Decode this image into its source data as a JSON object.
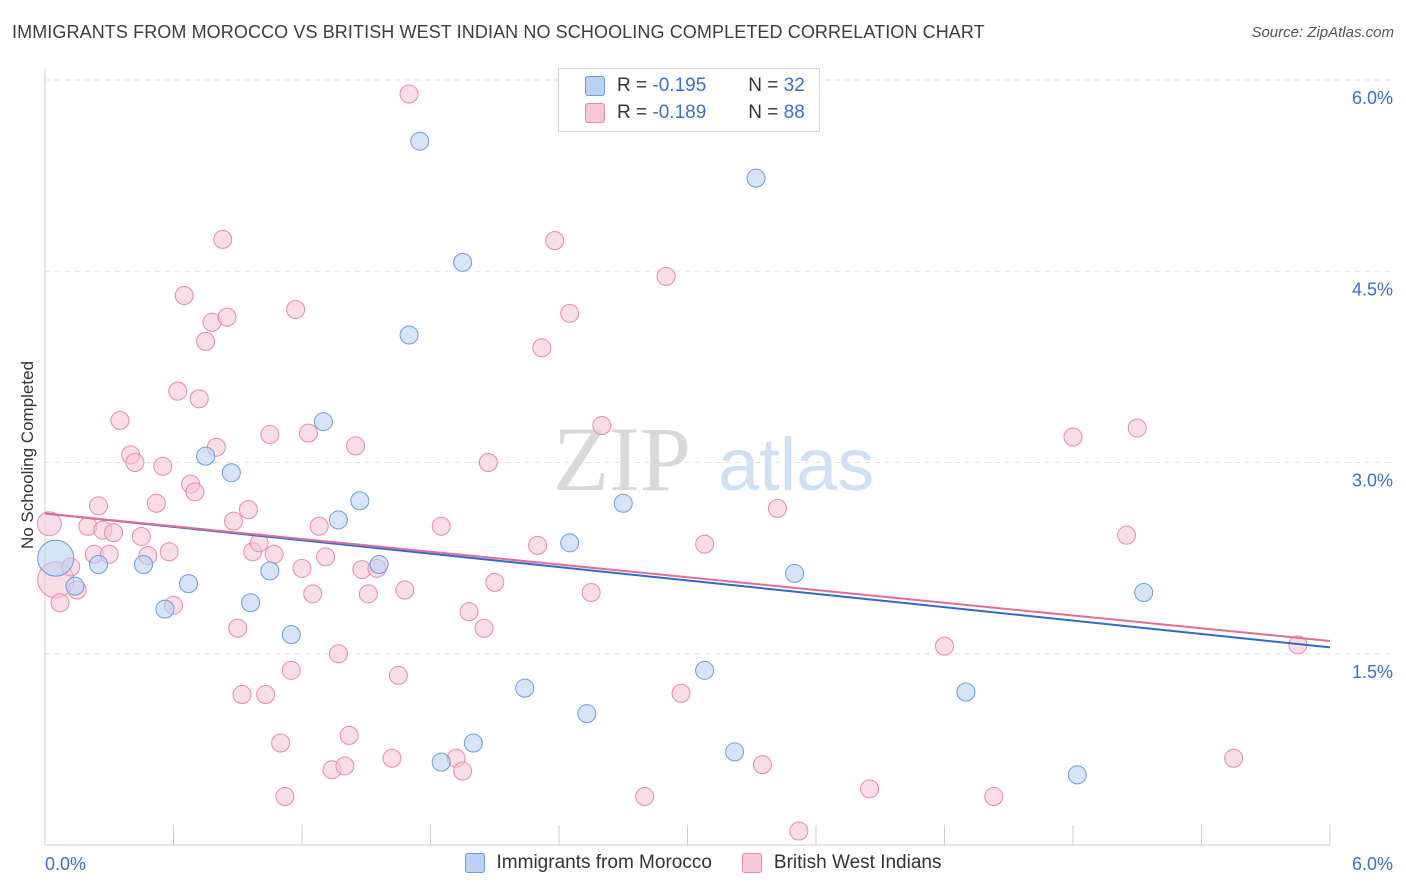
{
  "header": {
    "title": "IMMIGRANTS FROM MOROCCO VS BRITISH WEST INDIAN NO SCHOOLING COMPLETED CORRELATION CHART",
    "source": "Source: ZipAtlas.com"
  },
  "watermark": {
    "zip": "ZIP",
    "atlas": "atlas"
  },
  "legend": {
    "r_label": "R =",
    "n_label": "N =",
    "rows": [
      {
        "r": "-0.195",
        "n": "32"
      },
      {
        "r": "-0.189",
        "n": "88"
      }
    ]
  },
  "colors": {
    "blue_fill": "#b9d2f5",
    "blue_stroke": "#6d9be0",
    "blue_line": "#2f6acc",
    "pink_fill": "#f9c6d5",
    "pink_stroke": "#e88aa7",
    "pink_line": "#e06e96",
    "axis_label": "#3b6fd1"
  },
  "chart_data": {
    "type": "scatter",
    "title": "IMMIGRANTS FROM MOROCCO VS BRITISH WEST INDIAN NO SCHOOLING COMPLETED CORRELATION CHART",
    "xlabel": "",
    "ylabel": "No Schooling Completed",
    "xlim": [
      0,
      6.0
    ],
    "ylim": [
      0,
      6.0
    ],
    "x_tick_labels": [
      "0.0%",
      "6.0%"
    ],
    "y_ticks": [
      1.5,
      3.0,
      4.5,
      6.0
    ],
    "y_tick_labels": [
      "1.5%",
      "3.0%",
      "4.5%",
      "6.0%"
    ],
    "grid": true,
    "legend_position": "top-center",
    "series": [
      {
        "name": "Immigrants from Morocco",
        "color": "blue",
        "trend": [
          [
            0,
            2.6
          ],
          [
            6.0,
            1.55
          ]
        ],
        "points": [
          [
            0.05,
            2.25,
            18
          ],
          [
            0.14,
            2.03,
            9
          ],
          [
            0.25,
            2.2,
            9
          ],
          [
            0.46,
            2.2,
            9
          ],
          [
            0.56,
            1.85,
            9
          ],
          [
            0.67,
            2.05,
            9
          ],
          [
            0.75,
            3.05,
            9
          ],
          [
            0.87,
            2.92,
            9
          ],
          [
            0.96,
            1.9,
            9
          ],
          [
            1.05,
            2.15,
            9
          ],
          [
            1.15,
            1.65,
            9
          ],
          [
            1.3,
            3.32,
            9
          ],
          [
            1.37,
            2.55,
            9
          ],
          [
            1.47,
            2.7,
            9
          ],
          [
            1.56,
            2.2,
            9
          ],
          [
            1.7,
            4.0,
            9
          ],
          [
            1.75,
            5.52,
            9
          ],
          [
            1.85,
            0.65,
            9
          ],
          [
            1.95,
            4.57,
            9
          ],
          [
            2.0,
            0.8,
            9
          ],
          [
            2.24,
            1.23,
            9
          ],
          [
            2.45,
            2.37,
            9
          ],
          [
            2.53,
            1.03,
            9
          ],
          [
            2.7,
            2.68,
            9
          ],
          [
            3.08,
            1.37,
            9
          ],
          [
            3.22,
            0.73,
            9
          ],
          [
            3.32,
            5.23,
            9
          ],
          [
            3.5,
            2.13,
            9
          ],
          [
            4.3,
            1.2,
            9
          ],
          [
            4.82,
            0.55,
            9
          ],
          [
            5.13,
            1.98,
            9
          ]
        ]
      },
      {
        "name": "British West Indians",
        "color": "pink",
        "trend": [
          [
            0,
            2.6
          ],
          [
            6.0,
            1.6
          ]
        ],
        "points": [
          [
            0.05,
            2.08,
            18
          ],
          [
            0.02,
            2.52,
            12
          ],
          [
            0.07,
            1.9,
            9
          ],
          [
            0.12,
            2.18,
            9
          ],
          [
            0.15,
            2.0,
            9
          ],
          [
            0.2,
            2.5,
            9
          ],
          [
            0.23,
            2.28,
            9
          ],
          [
            0.25,
            2.66,
            9
          ],
          [
            0.27,
            2.47,
            9
          ],
          [
            0.3,
            2.28,
            9
          ],
          [
            0.32,
            2.45,
            9
          ],
          [
            0.35,
            3.33,
            9
          ],
          [
            0.4,
            3.06,
            9
          ],
          [
            0.42,
            3.0,
            9
          ],
          [
            0.45,
            2.42,
            9
          ],
          [
            0.48,
            2.27,
            9
          ],
          [
            0.52,
            2.68,
            9
          ],
          [
            0.55,
            2.97,
            9
          ],
          [
            0.58,
            2.3,
            9
          ],
          [
            0.62,
            3.56,
            9
          ],
          [
            0.65,
            4.31,
            9
          ],
          [
            0.68,
            2.83,
            9
          ],
          [
            0.7,
            2.77,
            9
          ],
          [
            0.72,
            3.5,
            9
          ],
          [
            0.75,
            3.95,
            9
          ],
          [
            0.78,
            4.1,
            9
          ],
          [
            0.8,
            3.12,
            9
          ],
          [
            0.83,
            4.75,
            9
          ],
          [
            0.85,
            4.14,
            9
          ],
          [
            0.88,
            2.54,
            9
          ],
          [
            0.9,
            1.7,
            9
          ],
          [
            0.92,
            1.18,
            9
          ],
          [
            0.95,
            2.63,
            9
          ],
          [
            0.97,
            2.3,
            9
          ],
          [
            1.0,
            2.37,
            9
          ],
          [
            1.03,
            1.18,
            9
          ],
          [
            1.05,
            3.22,
            9
          ],
          [
            1.07,
            2.28,
            9
          ],
          [
            1.1,
            0.8,
            9
          ],
          [
            1.12,
            0.38,
            9
          ],
          [
            1.15,
            1.37,
            9
          ],
          [
            1.17,
            4.2,
            9
          ],
          [
            1.2,
            2.17,
            9
          ],
          [
            1.23,
            3.23,
            9
          ],
          [
            1.25,
            1.97,
            9
          ],
          [
            1.28,
            2.5,
            9
          ],
          [
            1.31,
            2.26,
            9
          ],
          [
            1.34,
            0.59,
            9
          ],
          [
            1.37,
            1.5,
            9
          ],
          [
            1.4,
            0.62,
            9
          ],
          [
            1.42,
            0.86,
            9
          ],
          [
            1.45,
            3.13,
            9
          ],
          [
            1.48,
            2.16,
            9
          ],
          [
            1.51,
            1.97,
            9
          ],
          [
            1.55,
            2.17,
            9
          ],
          [
            1.62,
            0.68,
            9
          ],
          [
            1.65,
            1.33,
            9
          ],
          [
            1.68,
            2.0,
            9
          ],
          [
            1.85,
            2.5,
            9
          ],
          [
            1.92,
            0.68,
            9
          ],
          [
            1.95,
            0.58,
            9
          ],
          [
            1.98,
            1.83,
            9
          ],
          [
            2.05,
            1.7,
            9
          ],
          [
            2.07,
            3.0,
            9
          ],
          [
            2.1,
            2.06,
            9
          ],
          [
            2.3,
            2.35,
            9
          ],
          [
            2.32,
            3.9,
            9
          ],
          [
            2.38,
            4.74,
            9
          ],
          [
            2.45,
            4.17,
            9
          ],
          [
            2.55,
            1.98,
            9
          ],
          [
            2.6,
            3.29,
            9
          ],
          [
            2.8,
            0.38,
            9
          ],
          [
            2.9,
            4.46,
            9
          ],
          [
            2.97,
            1.19,
            9
          ],
          [
            3.08,
            2.36,
            9
          ],
          [
            3.35,
            0.63,
            9
          ],
          [
            3.42,
            2.64,
            9
          ],
          [
            3.52,
            0.11,
            9
          ],
          [
            3.85,
            0.44,
            9
          ],
          [
            4.2,
            1.56,
            9
          ],
          [
            4.43,
            0.38,
            9
          ],
          [
            4.8,
            3.2,
            9
          ],
          [
            5.05,
            2.43,
            9
          ],
          [
            5.1,
            3.27,
            9
          ],
          [
            5.55,
            0.68,
            9
          ],
          [
            5.85,
            1.57,
            9
          ],
          [
            0.6,
            1.88,
            9
          ],
          [
            1.7,
            5.89,
            9
          ]
        ]
      }
    ]
  }
}
